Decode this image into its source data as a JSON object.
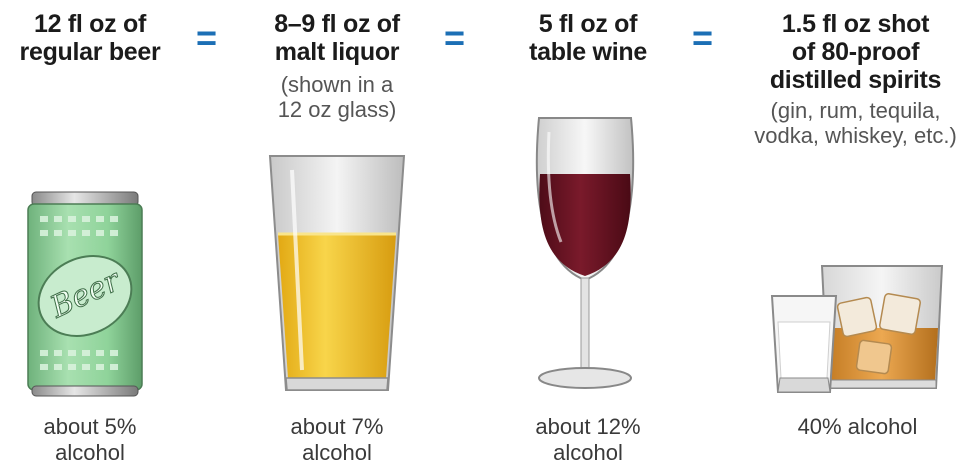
{
  "columns": [
    {
      "title_lines": [
        "12 fl oz of",
        "regular beer"
      ],
      "note_lines": [],
      "caption_lines": [
        "about 5%",
        "alcohol"
      ],
      "image_label": "Beer"
    },
    {
      "title_lines": [
        "8–9 fl oz of",
        "malt liquor"
      ],
      "note_lines": [
        "(shown in a",
        "12 oz glass)"
      ],
      "caption_lines": [
        "about 7%",
        "alcohol"
      ]
    },
    {
      "title_lines": [
        "5 fl oz of",
        "table wine"
      ],
      "note_lines": [],
      "caption_lines": [
        "about 12%",
        "alcohol"
      ]
    },
    {
      "title_lines": [
        "1.5 fl oz shot",
        "of 80-proof",
        "distilled spirits"
      ],
      "note_lines": [
        "(gin, rum, tequila,",
        "vodka, whiskey, etc.)"
      ],
      "caption_lines": [
        "40% alcohol"
      ]
    }
  ],
  "equals_sign": "=",
  "colors": {
    "equals": "#1c6fb5",
    "beer_can": "#8fd39a",
    "malt_liquor": "#f3c21e",
    "wine": "#6e1424",
    "whiskey": "#e09a3a"
  }
}
